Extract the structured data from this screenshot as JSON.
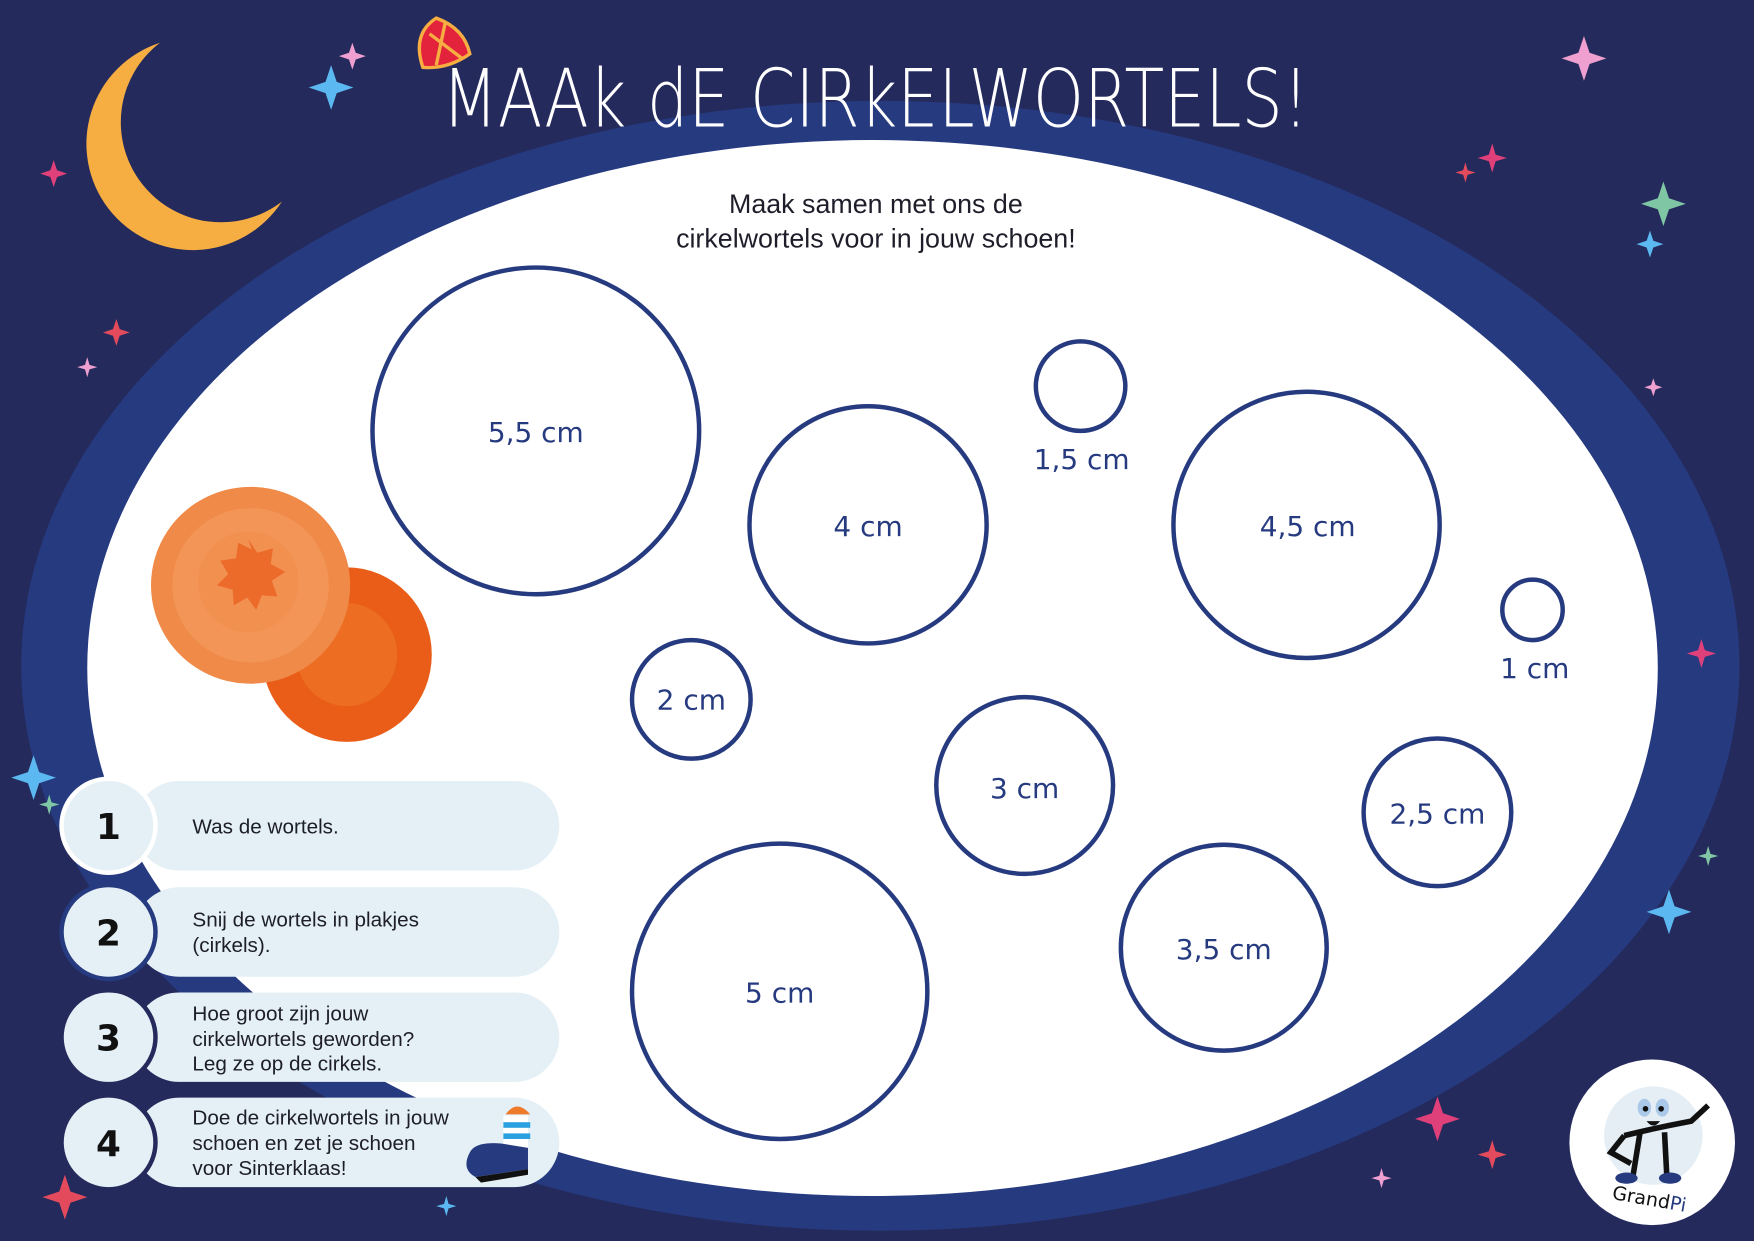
{
  "title": "MAAk dE CIRkELWORTELS!",
  "subtitle": [
    "Maak samen met ons de",
    "cirkelwortels voor in jouw schoen!"
  ],
  "circles": [
    {
      "label": "5,5 cm",
      "diameter_cm": 5.5
    },
    {
      "label": "4 cm",
      "diameter_cm": 4
    },
    {
      "label": "1,5 cm",
      "diameter_cm": 1.5
    },
    {
      "label": "4,5 cm",
      "diameter_cm": 4.5
    },
    {
      "label": "1 cm",
      "diameter_cm": 1
    },
    {
      "label": "2 cm",
      "diameter_cm": 2
    },
    {
      "label": "3 cm",
      "diameter_cm": 3
    },
    {
      "label": "2,5 cm",
      "diameter_cm": 2.5
    },
    {
      "label": "5 cm",
      "diameter_cm": 5
    },
    {
      "label": "3,5 cm",
      "diameter_cm": 3.5
    }
  ],
  "steps": [
    {
      "number": "1",
      "lines": [
        "Was de wortels."
      ]
    },
    {
      "number": "2",
      "lines": [
        "Snij de wortels in plakjes",
        "(cirkels)."
      ]
    },
    {
      "number": "3",
      "lines": [
        "Hoe groot zijn jouw",
        "cirkelwortels geworden?",
        "Leg ze op de cirkels."
      ]
    },
    {
      "number": "4",
      "lines": [
        "Doe de cirkelwortels in jouw",
        "schoen en zet je schoen",
        "voor Sinterklaas!"
      ]
    }
  ],
  "logo": {
    "text_a": "Grand",
    "text_b": "Pi"
  },
  "colors": {
    "background": "#252a5c",
    "ring": "#263a80",
    "paper": "#ffffff",
    "step_bg": "#e4f0f5",
    "moon": "#f6ae42",
    "carrot": "#ee7a2c"
  }
}
